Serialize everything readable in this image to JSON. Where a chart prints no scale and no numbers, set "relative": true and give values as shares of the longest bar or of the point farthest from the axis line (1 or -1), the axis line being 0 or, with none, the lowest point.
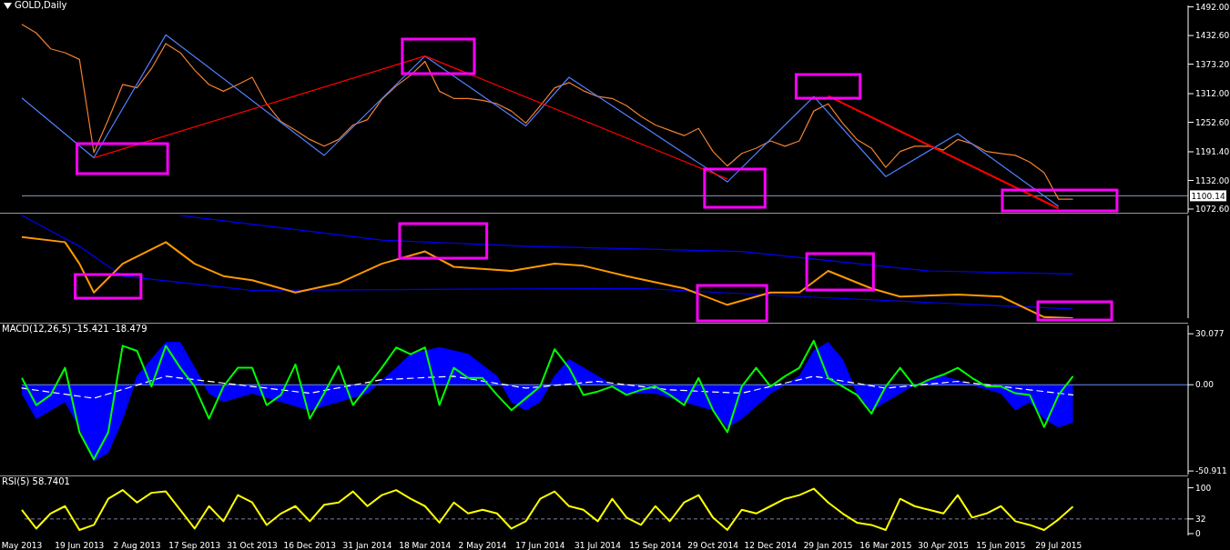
{
  "chart_data": [
    {
      "type": "line",
      "title": "GOLD,Daily",
      "tick_labels": "y",
      "categories": [
        null,
        null,
        null,
        null,
        null,
        null,
        null,
        null,
        null,
        null,
        null,
        null,
        null,
        null,
        null,
        null,
        null,
        null,
        null,
        null,
        null,
        null,
        null,
        null,
        null,
        null,
        null,
        null,
        null,
        null,
        null,
        null,
        null,
        null,
        null,
        null,
        null,
        null,
        null,
        null,
        null,
        null,
        null,
        null,
        null,
        null,
        null,
        null,
        null,
        null,
        null,
        null,
        null,
        null,
        null,
        null,
        null,
        null,
        null,
        null,
        null,
        null,
        null,
        null,
        null,
        null,
        null,
        null,
        null,
        null,
        null,
        null,
        null,
        null,
        null,
        null,
        null,
        null,
        null,
        null,
        null,
        null
      ],
      "ylim": [
        1065,
        1495
      ],
      "yticks": [
        {
          "value": 1492,
          "label": "1492.00"
        },
        {
          "value": 1432.6,
          "label": "1432.60"
        },
        {
          "value": 1373.2,
          "label": "1373.20"
        },
        {
          "value": 1312,
          "label": "1312.00"
        },
        {
          "value": 1252.6,
          "label": "1252.60"
        },
        {
          "value": 1191.4,
          "label": "1191.40"
        },
        {
          "value": 1132,
          "label": "1132.00"
        },
        {
          "value": 1072.6,
          "label": "1072.60"
        }
      ],
      "ref_lines": [
        {
          "axis": "y",
          "value": 1100.14,
          "label": "1100.14",
          "color": "#8c9cbf"
        }
      ],
      "series": [
        {
          "color": "#f08030",
          "values": [
            1456,
            1438,
            1405,
            1397,
            1383,
            1190,
            1258,
            1331,
            1324,
            1364,
            1416,
            1397,
            1361,
            1331,
            1317,
            1331,
            1346,
            1291,
            1254,
            1236,
            1217,
            1203,
            1217,
            1247,
            1258,
            1300,
            1328,
            1350,
            1379,
            1317,
            1302,
            1302,
            1298,
            1291,
            1276,
            1251,
            1287,
            1324,
            1335,
            1318,
            1306,
            1302,
            1287,
            1265,
            1247,
            1236,
            1225,
            1240,
            1192,
            1162,
            1188,
            1199,
            1214,
            1203,
            1214,
            1276,
            1291,
            1251,
            1217,
            1199,
            1159,
            1192,
            1203,
            1203,
            1195,
            1217,
            1208,
            1192,
            1188,
            1184,
            1170,
            1148,
            1093,
            1093,
            null,
            null,
            null,
            null,
            null,
            null,
            null,
            null
          ]
        },
        {
          "color": "#4f7fff",
          "values": [
            1303,
            null,
            null,
            null,
            null,
            1179,
            null,
            null,
            null,
            null,
            1434,
            null,
            null,
            null,
            null,
            null,
            null,
            null,
            null,
            null,
            null,
            1184,
            null,
            null,
            null,
            null,
            null,
            null,
            1390,
            null,
            null,
            null,
            null,
            null,
            null,
            1245,
            null,
            null,
            1346,
            null,
            null,
            null,
            null,
            null,
            null,
            null,
            null,
            null,
            null,
            1129,
            null,
            null,
            null,
            null,
            null,
            1306,
            null,
            null,
            null,
            null,
            1140,
            null,
            null,
            null,
            null,
            1229,
            null,
            null,
            null,
            null,
            null,
            null,
            1078,
            null,
            null,
            null,
            null,
            null,
            null,
            null,
            null,
            null
          ]
        },
        {
          "color": "#ff0000",
          "values": [
            null,
            null,
            null,
            null,
            null,
            1179,
            null,
            null,
            null,
            null,
            null,
            null,
            null,
            null,
            null,
            null,
            null,
            null,
            null,
            null,
            null,
            null,
            null,
            null,
            null,
            null,
            null,
            null,
            1390,
            null,
            null,
            null,
            null,
            null,
            null,
            null,
            null,
            null,
            null,
            null,
            null,
            null,
            null,
            null,
            null,
            null,
            null,
            null,
            null,
            1135,
            null,
            null,
            null,
            null,
            null,
            null,
            null,
            null,
            null,
            null,
            null,
            null,
            null,
            null,
            null,
            null,
            null,
            null,
            null,
            null,
            null,
            null,
            null,
            null,
            null,
            null,
            null,
            null,
            null,
            null,
            null,
            null
          ]
        },
        {
          "color": "#ff0000",
          "values": [
            null,
            null,
            null,
            null,
            null,
            null,
            null,
            null,
            null,
            null,
            null,
            null,
            null,
            null,
            null,
            null,
            null,
            null,
            null,
            null,
            null,
            null,
            null,
            null,
            null,
            null,
            null,
            null,
            null,
            null,
            null,
            null,
            null,
            null,
            null,
            null,
            null,
            null,
            null,
            null,
            null,
            null,
            null,
            null,
            null,
            null,
            null,
            null,
            null,
            null,
            null,
            null,
            null,
            null,
            null,
            null,
            1307,
            null,
            null,
            null,
            null,
            null,
            null,
            null,
            null,
            null,
            null,
            null,
            null,
            null,
            null,
            null,
            1074,
            null,
            null,
            null,
            null,
            null,
            null,
            null,
            null,
            null
          ]
        }
      ]
    },
    {
      "type": "line",
      "relative": true,
      "tick_labels": false,
      "categories": [
        null,
        null,
        null,
        null,
        null,
        null,
        null,
        null,
        null,
        null,
        null,
        null,
        null,
        null,
        null,
        null,
        null,
        null,
        null,
        null,
        null,
        null,
        null,
        null,
        null,
        null,
        null,
        null,
        null,
        null,
        null,
        null,
        null,
        null,
        null,
        null,
        null,
        null,
        null,
        null,
        null,
        null,
        null,
        null,
        null,
        null,
        null,
        null,
        null,
        null,
        null,
        null,
        null,
        null,
        null,
        null,
        null,
        null,
        null,
        null,
        null,
        null,
        null,
        null,
        null,
        null,
        null,
        null,
        null,
        null,
        null,
        null,
        null,
        null,
        null,
        null,
        null,
        null,
        null,
        null,
        null,
        null
      ],
      "series": [
        {
          "color": "#0000ff",
          "values": [
            null,
            null,
            null,
            null,
            null,
            null,
            null,
            null,
            null,
            null,
            null,
            1,
            null,
            null,
            null,
            null,
            null,
            null,
            null,
            null,
            null,
            null,
            null,
            null,
            null,
            0.76,
            null,
            null,
            null,
            null,
            null,
            null,
            null,
            null,
            null,
            0.7,
            null,
            null,
            null,
            null,
            null,
            null,
            null,
            null,
            null,
            null,
            null,
            null,
            null,
            null,
            0.65,
            null,
            null,
            null,
            null,
            null,
            null,
            null,
            null,
            null,
            null,
            null,
            null,
            0.46,
            null,
            null,
            null,
            null,
            null,
            null,
            null,
            null,
            null,
            0.43,
            null,
            null,
            null,
            null,
            null,
            null,
            null,
            null
          ]
        },
        {
          "color": "#0000ff",
          "values": [
            1,
            null,
            null,
            null,
            0.7,
            null,
            null,
            0.41,
            null,
            null,
            null,
            null,
            null,
            null,
            null,
            null,
            0.27,
            null,
            null,
            null,
            null,
            null,
            null,
            null,
            null,
            null,
            null,
            null,
            0.28,
            null,
            null,
            null,
            null,
            null,
            null,
            null,
            null,
            null,
            null,
            null,
            null,
            null,
            null,
            0.29,
            null,
            null,
            null,
            null,
            null,
            null,
            null,
            null,
            null,
            null,
            0.21,
            null,
            null,
            null,
            null,
            null,
            null,
            null,
            null,
            null,
            null,
            null,
            null,
            null,
            null,
            null,
            null,
            null,
            null,
            0.09,
            null,
            null,
            null,
            null,
            null,
            null,
            null,
            null
          ]
        },
        {
          "color": "#ff9900",
          "values": [
            0.79,
            null,
            null,
            0.74,
            0.53,
            0.25,
            null,
            0.53,
            null,
            null,
            0.74,
            null,
            0.53,
            null,
            0.41,
            null,
            0.37,
            null,
            null,
            0.25,
            null,
            null,
            0.34,
            null,
            null,
            0.53,
            null,
            null,
            0.65,
            null,
            0.5,
            null,
            null,
            null,
            0.46,
            null,
            null,
            0.53,
            null,
            0.51,
            null,
            null,
            0.41,
            null,
            null,
            null,
            0.29,
            null,
            null,
            0.13,
            null,
            null,
            0.25,
            null,
            0.25,
            null,
            0.46,
            null,
            null,
            0.29,
            null,
            0.21,
            null,
            null,
            null,
            0.23,
            null,
            null,
            0.21,
            null,
            null,
            0.01,
            null,
            0,
            null,
            null,
            null,
            null,
            null,
            null,
            null,
            null
          ]
        }
      ]
    },
    {
      "type": "line",
      "title": "MACD(12,26,5) -15.421 -18.479",
      "tick_labels": "y",
      "categories": [
        null,
        null,
        null,
        null,
        null,
        null,
        null,
        null,
        null,
        null,
        null,
        null,
        null,
        null,
        null,
        null,
        null,
        null,
        null,
        null,
        null,
        null,
        null,
        null,
        null,
        null,
        null,
        null,
        null,
        null,
        null,
        null,
        null,
        null,
        null,
        null,
        null,
        null,
        null,
        null,
        null,
        null,
        null,
        null,
        null,
        null,
        null,
        null,
        null,
        null,
        null,
        null,
        null,
        null,
        null,
        null,
        null,
        null,
        null,
        null,
        null,
        null,
        null,
        null,
        null,
        null,
        null,
        null,
        null,
        null,
        null,
        null,
        null,
        null,
        null,
        null,
        null,
        null,
        null,
        null,
        null,
        null
      ],
      "ylim": [
        -53,
        35
      ],
      "yticks": [
        30.077,
        {
          "value": 0,
          "label": "0.00"
        },
        -50.911
      ],
      "ref_lines": [
        {
          "axis": "y",
          "value": 0,
          "color": "#6a8cff"
        }
      ],
      "series": [
        {
          "type": "area",
          "color": "#0000ff",
          "values": [
            -5,
            -20,
            null,
            -10,
            -25,
            -45,
            -40,
            -20,
            5,
            15,
            25,
            25,
            10,
            -5,
            -10,
            null,
            -5,
            null,
            -10,
            null,
            -15,
            null,
            -10,
            null,
            -5,
            null,
            10,
            18,
            null,
            22,
            null,
            18,
            null,
            5,
            -10,
            -15,
            -10,
            5,
            15,
            null,
            5,
            null,
            -5,
            null,
            -5,
            null,
            -10,
            null,
            -15,
            -25,
            -20,
            null,
            -5,
            null,
            5,
            20,
            25,
            15,
            -5,
            -15,
            -10,
            null,
            0,
            null,
            5,
            null,
            0,
            null,
            -5,
            -15,
            -10,
            -20,
            -25,
            -22,
            null,
            null,
            null,
            null,
            null,
            null,
            null,
            null
          ]
        },
        {
          "color": "#ffffff",
          "line_style": "dashed",
          "values": [
            -2,
            null,
            null,
            null,
            null,
            -8,
            null,
            null,
            null,
            null,
            5,
            null,
            null,
            null,
            null,
            0,
            null,
            null,
            null,
            null,
            -5,
            null,
            null,
            null,
            null,
            3,
            null,
            null,
            null,
            null,
            5,
            null,
            null,
            null,
            null,
            -2,
            null,
            null,
            null,
            null,
            2,
            null,
            null,
            null,
            null,
            -3,
            null,
            null,
            null,
            null,
            -5,
            null,
            null,
            null,
            null,
            5,
            null,
            null,
            null,
            null,
            -2,
            null,
            null,
            null,
            null,
            2,
            null,
            null,
            null,
            null,
            -3,
            null,
            null,
            -6,
            null,
            null,
            null,
            null,
            null,
            null,
            null,
            null
          ]
        },
        {
          "color": "#00ff00",
          "values": [
            4,
            -12,
            -6,
            10,
            -28,
            -44,
            -28,
            23,
            20,
            -1,
            23,
            10,
            -1,
            -20,
            -1,
            10,
            10,
            -12,
            -6,
            12,
            -20,
            -5,
            11,
            -12,
            -1,
            10,
            22,
            18,
            22,
            -12,
            10,
            4,
            4,
            -6,
            -15,
            -8,
            -1,
            21,
            10,
            -6,
            -4,
            -1,
            -6,
            -3,
            -1,
            -6,
            -12,
            4,
            -15,
            -28,
            -1,
            10,
            -1,
            5,
            10,
            26,
            4,
            -1,
            -6,
            -17,
            -1,
            10,
            -1,
            3,
            6,
            10,
            4,
            -1,
            -1,
            -5,
            -6,
            -25,
            -6,
            5,
            null,
            null,
            null,
            null,
            null,
            null,
            null,
            null
          ]
        }
      ]
    },
    {
      "type": "line",
      "title": "RSI(5) 58.7401",
      "categories": [
        "May 2013",
        null,
        null,
        null,
        "19 Jun 2013",
        null,
        null,
        null,
        "2 Aug 2013",
        null,
        null,
        null,
        "17 Sep 2013",
        null,
        null,
        null,
        "31 Oct 2013",
        null,
        null,
        null,
        "16 Dec 2013",
        null,
        null,
        null,
        "31 Jan 2014",
        null,
        null,
        null,
        "18 Mar 2014",
        null,
        null,
        null,
        "2 May 2014",
        null,
        null,
        null,
        "17 Jun 2014",
        null,
        null,
        null,
        "31 Jul 2014",
        null,
        null,
        null,
        "15 Sep 2014",
        null,
        null,
        null,
        "29 Oct 2014",
        null,
        null,
        null,
        "12 Dec 2014",
        null,
        null,
        null,
        "29 Jan 2015",
        null,
        null,
        null,
        "16 Mar 2015",
        null,
        null,
        null,
        "30 Apr 2015",
        null,
        null,
        null,
        "15 Jun 2015",
        null,
        null,
        null,
        "29 Jul 2015",
        null,
        null,
        null,
        null,
        null,
        null,
        null,
        null,
        null
      ],
      "ylim": [
        -4,
        121
      ],
      "yticks": [
        100,
        32,
        0
      ],
      "ref_lines": [
        {
          "axis": "y",
          "value": 32,
          "color": "#8080a0",
          "line_style": "dashed"
        }
      ],
      "series": [
        {
          "color": "#ffff00",
          "values": [
            52,
            11,
            44,
            60,
            8,
            19,
            76,
            95,
            68,
            89,
            92,
            52,
            11,
            60,
            27,
            84,
            68,
            19,
            44,
            60,
            27,
            63,
            68,
            92,
            60,
            84,
            95,
            76,
            60,
            24,
            68,
            44,
            52,
            44,
            11,
            27,
            76,
            92,
            60,
            52,
            27,
            76,
            35,
            19,
            60,
            27,
            68,
            84,
            35,
            8,
            52,
            44,
            60,
            76,
            84,
            98,
            68,
            44,
            24,
            19,
            8,
            76,
            60,
            52,
            44,
            84,
            35,
            44,
            60,
            27,
            19,
            8,
            31,
            59,
            null,
            null,
            null,
            null,
            null,
            null,
            null,
            null
          ]
        }
      ]
    }
  ]
}
